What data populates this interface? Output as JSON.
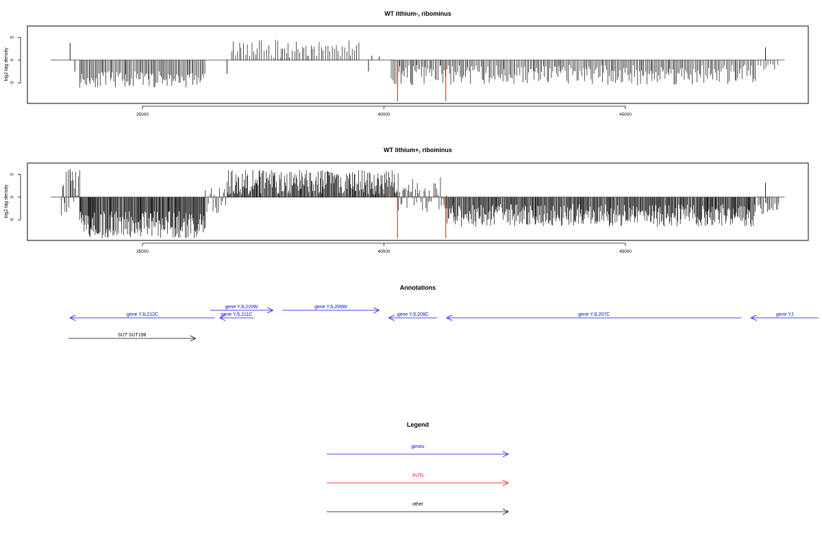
{
  "chart_data": [
    {
      "type": "bar",
      "title": "WT lithium-, ribominus",
      "ylabel": "log2 tag density",
      "xlabel": "",
      "xlim": [
        33200,
        48300
      ],
      "ylim": [
        -9.5,
        7.5
      ],
      "x_ticks": [
        35000,
        40000,
        45000
      ],
      "y_ticks": [
        5,
        0,
        -5
      ],
      "grid": false,
      "baseline": {
        "x_start": 33300,
        "x_end": 48300,
        "y": 0
      },
      "segments": [
        {
          "x_start": 33700,
          "x_end": 36300,
          "y_min": -6.0,
          "y_max": -2.5,
          "sign": -1,
          "density": 0.55
        },
        {
          "x_start": 36850,
          "x_end": 39500,
          "y_min": 0.5,
          "y_max": 4.5,
          "sign": 1,
          "density": 0.35
        },
        {
          "x_start": 40150,
          "x_end": 47700,
          "y_min": -5.5,
          "y_max": -1.0,
          "sign": -1,
          "density": 0.5
        },
        {
          "x_start": 47750,
          "x_end": 48200,
          "y_min": -2.5,
          "y_max": -0.5,
          "sign": -1,
          "density": 0.25
        }
      ],
      "extra_bars": [
        {
          "x": 33500,
          "y": 3.8
        },
        {
          "x": 33600,
          "y": -2.5
        },
        {
          "x": 36750,
          "y": -3.0
        },
        {
          "x": 39750,
          "y": 1.0
        },
        {
          "x": 39900,
          "y": 0.8
        },
        {
          "x": 39680,
          "y": -2.5
        },
        {
          "x": 47900,
          "y": 2.8
        }
      ],
      "marker_lines": [
        {
          "x": 40280,
          "y": -9.0,
          "color": "#ff0000"
        },
        {
          "x": 41280,
          "y": -9.0,
          "color": "#ff0000"
        }
      ]
    },
    {
      "type": "bar",
      "title": "WT lithium+, ribominus",
      "ylabel": "log2 tag density",
      "xlabel": "",
      "xlim": [
        33200,
        48300
      ],
      "ylim": [
        -9.5,
        7.5
      ],
      "x_ticks": [
        35000,
        40000,
        45000
      ],
      "y_ticks": [
        5,
        0,
        -5
      ],
      "grid": false,
      "baseline": {
        "x_start": 33300,
        "x_end": 48300,
        "y": 0
      },
      "segments": [
        {
          "x_start": 33320,
          "x_end": 33700,
          "y_min": -4.0,
          "y_max": 6.0,
          "sign": 0,
          "density": 0.7
        },
        {
          "x_start": 33700,
          "x_end": 36300,
          "y_min": -9.0,
          "y_max": -3.0,
          "sign": -1,
          "density": 1.0
        },
        {
          "x_start": 36300,
          "x_end": 36750,
          "y_min": -3.5,
          "y_max": 2.5,
          "sign": 0,
          "density": 0.5
        },
        {
          "x_start": 36750,
          "x_end": 40300,
          "y_min": 0.5,
          "y_max": 6.0,
          "sign": 1,
          "density": 0.9
        },
        {
          "x_start": 40300,
          "x_end": 41300,
          "y_min": -3.5,
          "y_max": 4.5,
          "sign": 0,
          "density": 0.6
        },
        {
          "x_start": 41300,
          "x_end": 47700,
          "y_min": -6.5,
          "y_max": -1.5,
          "sign": -1,
          "density": 0.9
        },
        {
          "x_start": 47750,
          "x_end": 48200,
          "y_min": -4.0,
          "y_max": -1.0,
          "sign": -1,
          "density": 0.5
        }
      ],
      "extra_bars": [
        {
          "x": 33500,
          "y": 6.2
        },
        {
          "x": 47900,
          "y": 3.2
        }
      ],
      "marker_lines": [
        {
          "x": 40280,
          "y": -9.0,
          "color": "#ff0000"
        },
        {
          "x": 41280,
          "y": -9.0,
          "color": "#ff0000"
        }
      ]
    }
  ],
  "annotations": {
    "title": "Annotations",
    "genes": [
      {
        "label": "gene YJL212C",
        "x_start": 33500,
        "x_end": 36500,
        "direction": "left",
        "row": 1,
        "color": "#0000ff"
      },
      {
        "label": "gene YJL211C",
        "x_start": 36600,
        "x_end": 37300,
        "direction": "left",
        "row": 1,
        "color": "#0000ff"
      },
      {
        "label": "gene YJL210W",
        "x_start": 36400,
        "x_end": 37700,
        "direction": "right",
        "row": 0,
        "color": "#0000ff"
      },
      {
        "label": "gene YJL209W",
        "x_start": 37900,
        "x_end": 39900,
        "direction": "right",
        "row": 0,
        "color": "#0000ff"
      },
      {
        "label": "gene YJL208C",
        "x_start": 40100,
        "x_end": 41100,
        "direction": "left",
        "row": 1,
        "color": "#0000ff"
      },
      {
        "label": "gene YJL207C",
        "x_start": 41300,
        "x_end": 47400,
        "direction": "left",
        "row": 1,
        "color": "#0000ff"
      },
      {
        "label": "gene YJ",
        "x_start": 47600,
        "x_end": 49000,
        "direction": "left",
        "row": 1,
        "color": "#0000ff"
      }
    ],
    "others": [
      {
        "label": "SUT SUT198",
        "x_start": 33100,
        "x_end": 36100,
        "direction": "right",
        "row": 3,
        "color": "#000000"
      }
    ]
  },
  "legend": {
    "title": "Legend",
    "items": [
      {
        "label": "genes",
        "color": "#0000ff"
      },
      {
        "label": "XUTs",
        "color": "#ff0000"
      },
      {
        "label": "other",
        "color": "#000000"
      }
    ]
  }
}
